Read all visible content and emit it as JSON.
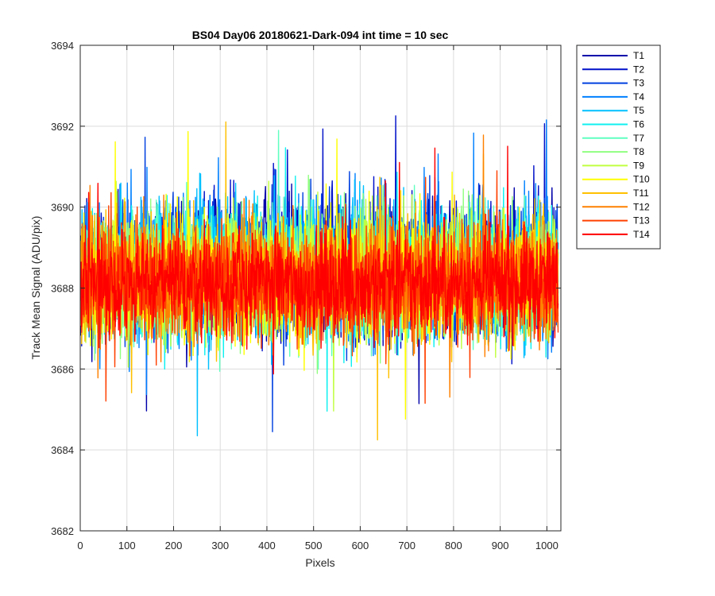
{
  "chart_data": {
    "type": "line",
    "title": "BS04 Day06 20180621-Dark-094 int time = 10 sec",
    "xlabel": "Pixels",
    "ylabel": "Track Mean Signal (ADU/pix)",
    "xlim": [
      0,
      1030
    ],
    "ylim": [
      3682,
      3694
    ],
    "xticks": [
      0,
      100,
      200,
      300,
      400,
      500,
      600,
      700,
      800,
      900,
      1000
    ],
    "yticks": [
      3682,
      3684,
      3686,
      3688,
      3690,
      3692,
      3694
    ],
    "grid": true,
    "legend_position": "outside-top-right",
    "n_pixels": 1024,
    "series": [
      {
        "name": "T1",
        "color": "#0000aa",
        "mean": 3688.5,
        "spread": 1.7,
        "seed": 11
      },
      {
        "name": "T2",
        "color": "#0010c8",
        "mean": 3688.5,
        "spread": 1.7,
        "seed": 23
      },
      {
        "name": "T3",
        "color": "#0040e0",
        "mean": 3688.5,
        "spread": 1.7,
        "seed": 37
      },
      {
        "name": "T4",
        "color": "#0080ff",
        "mean": 3688.4,
        "spread": 1.7,
        "seed": 41
      },
      {
        "name": "T5",
        "color": "#00c0ff",
        "mean": 3688.4,
        "spread": 1.7,
        "seed": 53
      },
      {
        "name": "T6",
        "color": "#10f0f0",
        "mean": 3688.4,
        "spread": 1.7,
        "seed": 67
      },
      {
        "name": "T7",
        "color": "#60ffc0",
        "mean": 3688.3,
        "spread": 1.6,
        "seed": 71
      },
      {
        "name": "T8",
        "color": "#90ff80",
        "mean": 3688.3,
        "spread": 1.6,
        "seed": 83
      },
      {
        "name": "T9",
        "color": "#c0ff40",
        "mean": 3688.3,
        "spread": 1.6,
        "seed": 97
      },
      {
        "name": "T10",
        "color": "#ffff00",
        "mean": 3688.2,
        "spread": 1.6,
        "seed": 101
      },
      {
        "name": "T11",
        "color": "#ffc000",
        "mean": 3688.2,
        "spread": 1.5,
        "seed": 113
      },
      {
        "name": "T12",
        "color": "#ff8000",
        "mean": 3688.2,
        "spread": 1.5,
        "seed": 127
      },
      {
        "name": "T13",
        "color": "#ff4000",
        "mean": 3688.1,
        "spread": 1.4,
        "seed": 131
      },
      {
        "name": "T14",
        "color": "#ff0000",
        "mean": 3688.1,
        "spread": 1.3,
        "seed": 149
      }
    ]
  }
}
